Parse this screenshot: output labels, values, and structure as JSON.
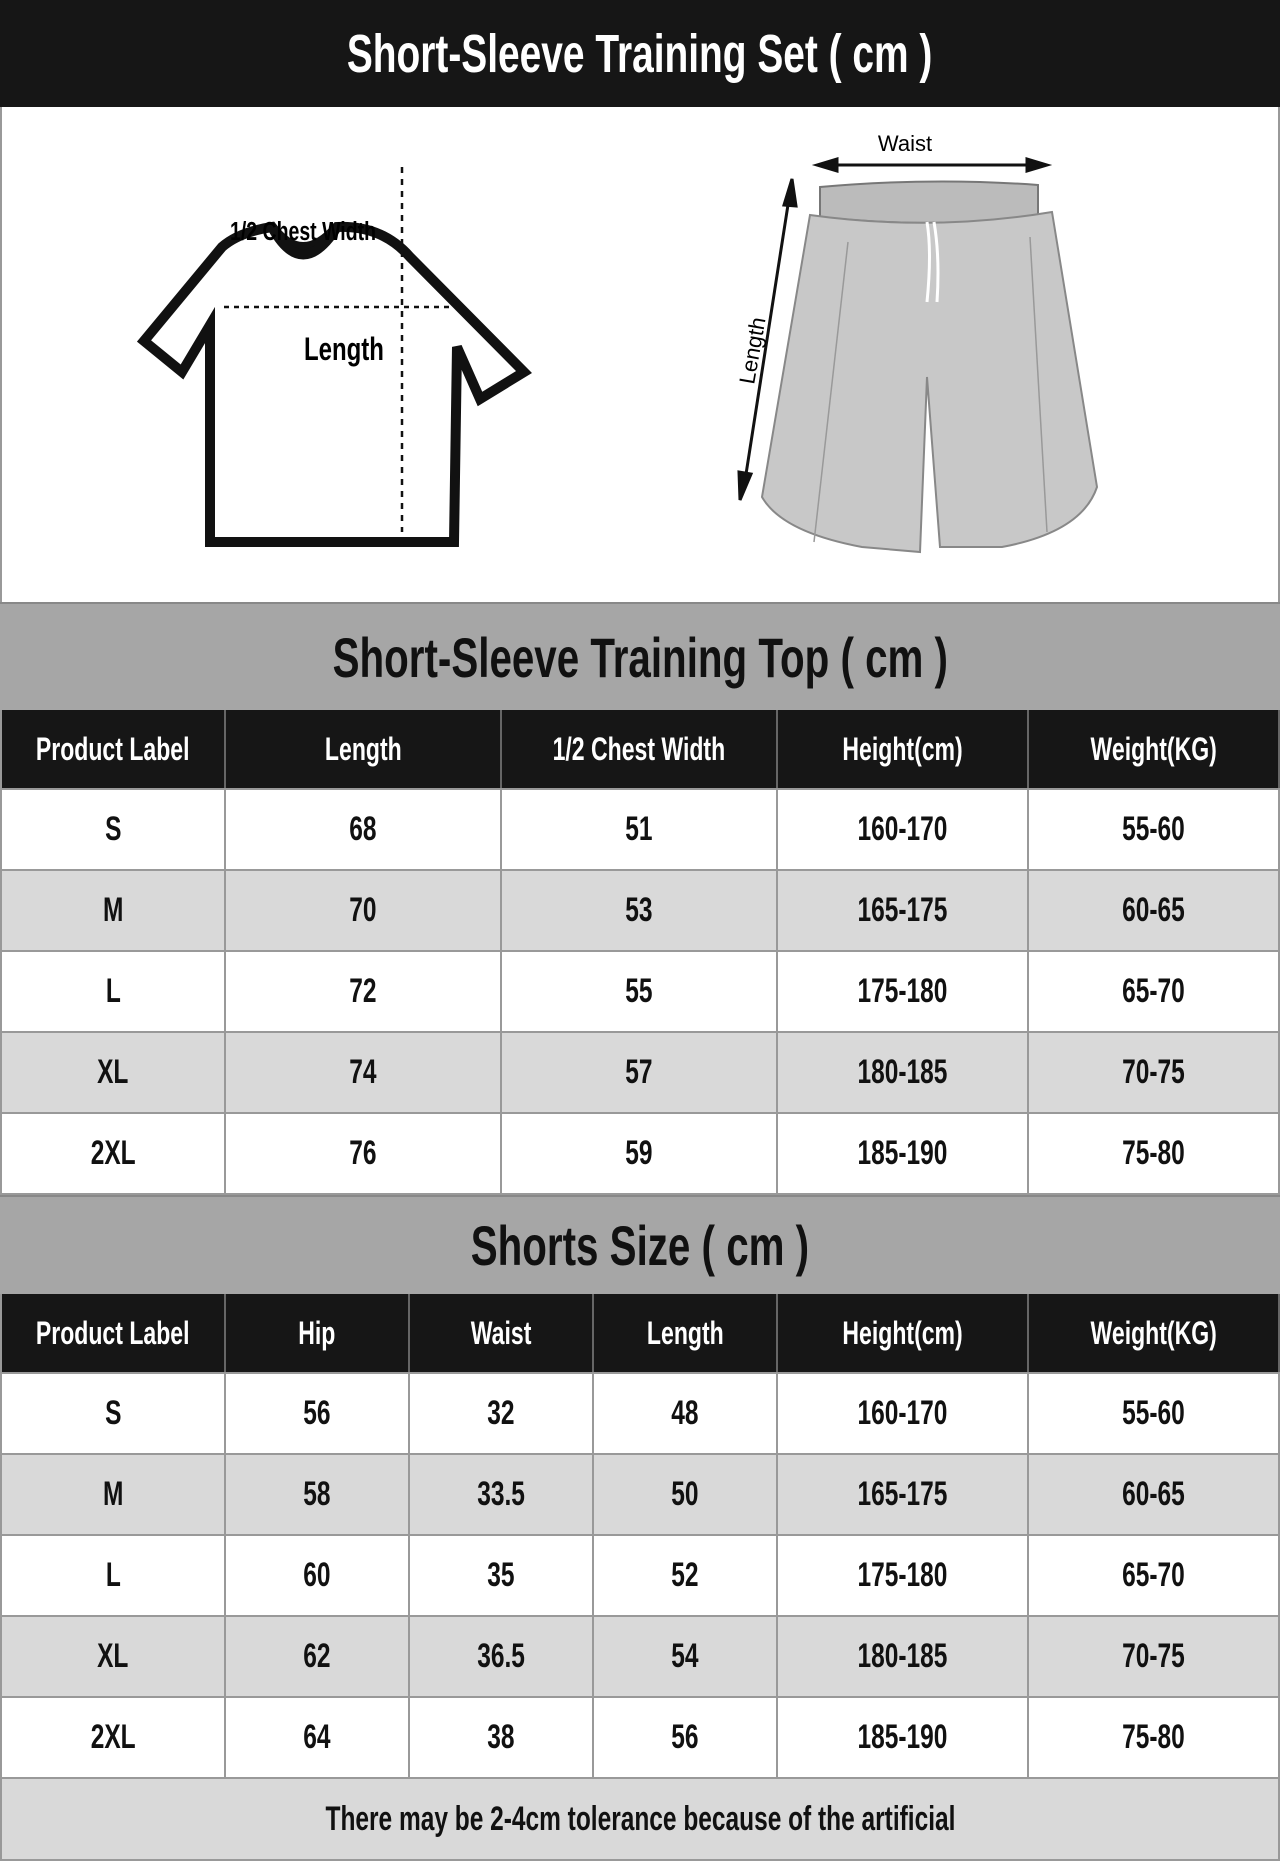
{
  "title": "Short-Sleeve Training Set ( cm )",
  "illustrations": {
    "shirt_chest": "1/2 Chest Width",
    "shirt_length": "Length",
    "shorts_waist": "Waist",
    "shorts_length": "Length"
  },
  "top": {
    "title": "Short-Sleeve Training Top ( cm )",
    "headers": [
      "Product Label",
      "Length",
      "1/2 Chest Width",
      "Height(cm)",
      "Weight(KG)"
    ],
    "rows": [
      [
        "S",
        "68",
        "51",
        "160-170",
        "55-60"
      ],
      [
        "M",
        "70",
        "53",
        "165-175",
        "60-65"
      ],
      [
        "L",
        "72",
        "55",
        "175-180",
        "65-70"
      ],
      [
        "XL",
        "74",
        "57",
        "180-185",
        "70-75"
      ],
      [
        "2XL",
        "76",
        "59",
        "185-190",
        "75-80"
      ]
    ]
  },
  "shorts": {
    "title": "Shorts Size ( cm )",
    "headers": [
      "Product Label",
      "Hip",
      "Waist",
      "Length",
      "Height(cm)",
      "Weight(KG)"
    ],
    "rows": [
      [
        "S",
        "56",
        "32",
        "48",
        "160-170",
        "55-60"
      ],
      [
        "M",
        "58",
        "33.5",
        "50",
        "165-175",
        "60-65"
      ],
      [
        "L",
        "60",
        "35",
        "52",
        "175-180",
        "65-70"
      ],
      [
        "XL",
        "62",
        "36.5",
        "54",
        "180-185",
        "70-75"
      ],
      [
        "2XL",
        "64",
        "38",
        "56",
        "185-190",
        "75-80"
      ]
    ]
  },
  "footer": "There may be 2-4cm tolerance because of the artificial"
}
